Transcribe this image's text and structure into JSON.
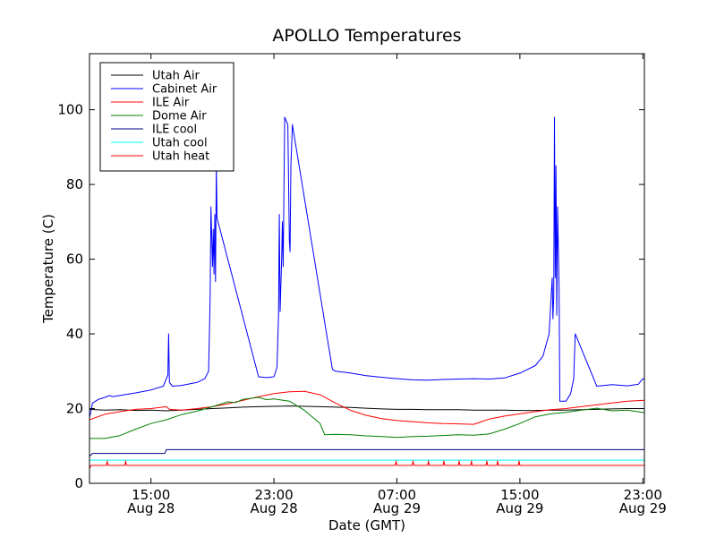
{
  "chart_data": {
    "type": "line",
    "title": "APOLLO Temperatures",
    "xlabel": "Date (GMT)",
    "ylabel": "Temperature (C)",
    "xlim": [
      11,
      47.1
    ],
    "ylim": [
      0,
      115
    ],
    "x_unit": "hours since Aug 28 00:00 GMT",
    "grid": false,
    "legend_position": "top-left",
    "x_ticks": [
      {
        "x": 15,
        "time": "15:00",
        "date": "Aug 28"
      },
      {
        "x": 23,
        "time": "23:00",
        "date": "Aug 28"
      },
      {
        "x": 31,
        "time": "07:00",
        "date": "Aug 29"
      },
      {
        "x": 39,
        "time": "15:00",
        "date": "Aug 29"
      },
      {
        "x": 47,
        "time": "23:00",
        "date": "Aug 29"
      }
    ],
    "y_ticks": [
      0,
      20,
      40,
      60,
      80,
      100
    ],
    "series": [
      {
        "name": "Utah Air",
        "color": "#000000",
        "points": [
          [
            11,
            19.8
          ],
          [
            12,
            19.6
          ],
          [
            13,
            19.7
          ],
          [
            14,
            19.5
          ],
          [
            15,
            19.6
          ],
          [
            16,
            19.4
          ],
          [
            17,
            19.6
          ],
          [
            18,
            19.8
          ],
          [
            19,
            20.0
          ],
          [
            20,
            20.2
          ],
          [
            21,
            20.4
          ],
          [
            22,
            20.5
          ],
          [
            23,
            20.6
          ],
          [
            24,
            20.7
          ],
          [
            25,
            20.6
          ],
          [
            26,
            20.5
          ],
          [
            27,
            20.4
          ],
          [
            28,
            20.3
          ],
          [
            29,
            20.1
          ],
          [
            30,
            19.9
          ],
          [
            31,
            19.8
          ],
          [
            32,
            19.8
          ],
          [
            33,
            19.7
          ],
          [
            34,
            19.7
          ],
          [
            35,
            19.7
          ],
          [
            36,
            19.6
          ],
          [
            37,
            19.6
          ],
          [
            38,
            19.6
          ],
          [
            39,
            19.5
          ],
          [
            40,
            19.5
          ],
          [
            41,
            19.6
          ],
          [
            42,
            19.6
          ],
          [
            43,
            19.7
          ],
          [
            44,
            19.8
          ],
          [
            45,
            19.9
          ],
          [
            46,
            20.0
          ],
          [
            47.1,
            20.0
          ]
        ]
      },
      {
        "name": "Cabinet Air",
        "color": "#0000ff",
        "points": [
          [
            11,
            17.5
          ],
          [
            11.2,
            21.5
          ],
          [
            11.6,
            22.5
          ],
          [
            12,
            23.0
          ],
          [
            12.3,
            23.5
          ],
          [
            12.5,
            23.2
          ],
          [
            13,
            23.5
          ],
          [
            14,
            24.2
          ],
          [
            15,
            25.0
          ],
          [
            15.8,
            26.0
          ],
          [
            16.1,
            29
          ],
          [
            16.15,
            40
          ],
          [
            16.2,
            27
          ],
          [
            16.4,
            26
          ],
          [
            17,
            26.2
          ],
          [
            18,
            27.0
          ],
          [
            18.5,
            28
          ],
          [
            18.75,
            30
          ],
          [
            18.85,
            50
          ],
          [
            18.9,
            74
          ],
          [
            19.0,
            58
          ],
          [
            19.05,
            68
          ],
          [
            19.1,
            56
          ],
          [
            19.15,
            72
          ],
          [
            19.2,
            54
          ],
          [
            19.25,
            85
          ],
          [
            19.3,
            71
          ],
          [
            22.0,
            28.5
          ],
          [
            22.5,
            28.3
          ],
          [
            23.0,
            28.5
          ],
          [
            23.2,
            31
          ],
          [
            23.3,
            45
          ],
          [
            23.35,
            72
          ],
          [
            23.4,
            46
          ],
          [
            23.5,
            60
          ],
          [
            23.55,
            70
          ],
          [
            23.6,
            58
          ],
          [
            23.7,
            98
          ],
          [
            23.8,
            97
          ],
          [
            23.9,
            96
          ],
          [
            24.0,
            65
          ],
          [
            24.05,
            62
          ],
          [
            24.1,
            85
          ],
          [
            24.2,
            96
          ],
          [
            26.8,
            30.5
          ],
          [
            27,
            30
          ],
          [
            28,
            29.5
          ],
          [
            29,
            28.8
          ],
          [
            30,
            28.4
          ],
          [
            31,
            28.0
          ],
          [
            32,
            27.7
          ],
          [
            33,
            27.6
          ],
          [
            34,
            27.8
          ],
          [
            35,
            27.9
          ],
          [
            36,
            28.0
          ],
          [
            37,
            27.9
          ],
          [
            38,
            28.2
          ],
          [
            39,
            29.5
          ],
          [
            40,
            31.5
          ],
          [
            40.5,
            34
          ],
          [
            40.9,
            40
          ],
          [
            41.1,
            55
          ],
          [
            41.15,
            44
          ],
          [
            41.2,
            50
          ],
          [
            41.25,
            98
          ],
          [
            41.3,
            55
          ],
          [
            41.35,
            85
          ],
          [
            41.4,
            45
          ],
          [
            41.45,
            74
          ],
          [
            41.55,
            52
          ],
          [
            41.6,
            22
          ],
          [
            42.0,
            22
          ],
          [
            42.3,
            24
          ],
          [
            42.5,
            28
          ],
          [
            42.6,
            40
          ],
          [
            44.0,
            26
          ],
          [
            45,
            26.4
          ],
          [
            46,
            26.1
          ],
          [
            46.7,
            26.5
          ],
          [
            47.0,
            28
          ],
          [
            47.1,
            27.8
          ]
        ]
      },
      {
        "name": "ILE Air",
        "color": "#ff0000",
        "points": [
          [
            11,
            17.0
          ],
          [
            12,
            18.5
          ],
          [
            13,
            19.2
          ],
          [
            14,
            19.8
          ],
          [
            15,
            20.0
          ],
          [
            16,
            20.5
          ],
          [
            16.2,
            19.8
          ],
          [
            17,
            19.6
          ],
          [
            18,
            20.0
          ],
          [
            19,
            20.5
          ],
          [
            20,
            21.3
          ],
          [
            21,
            22.2
          ],
          [
            22,
            23.2
          ],
          [
            23,
            24.0
          ],
          [
            24,
            24.5
          ],
          [
            25,
            24.6
          ],
          [
            26,
            23.7
          ],
          [
            27,
            21.5
          ],
          [
            28,
            19.5
          ],
          [
            29,
            18.2
          ],
          [
            30,
            17.3
          ],
          [
            31,
            16.8
          ],
          [
            32,
            16.5
          ],
          [
            33,
            16.2
          ],
          [
            34,
            16.0
          ],
          [
            35,
            15.9
          ],
          [
            36,
            15.8
          ],
          [
            36.5,
            16.5
          ],
          [
            37,
            17.2
          ],
          [
            38,
            18.0
          ],
          [
            39,
            18.6
          ],
          [
            40,
            19.2
          ],
          [
            41,
            19.7
          ],
          [
            42,
            20.0
          ],
          [
            43,
            20.5
          ],
          [
            44,
            21.0
          ],
          [
            45,
            21.5
          ],
          [
            46,
            22.0
          ],
          [
            47.1,
            22.2
          ]
        ]
      },
      {
        "name": "Dome Air",
        "color": "#008000",
        "points": [
          [
            11,
            12.0
          ],
          [
            12,
            12.0
          ],
          [
            13,
            12.8
          ],
          [
            14,
            14.5
          ],
          [
            15,
            16.0
          ],
          [
            16,
            17.0
          ],
          [
            17,
            18.4
          ],
          [
            18,
            19.3
          ],
          [
            19,
            20.5
          ],
          [
            20,
            21.8
          ],
          [
            20.5,
            21.6
          ],
          [
            21,
            22.5
          ],
          [
            22,
            23.0
          ],
          [
            22.5,
            22.4
          ],
          [
            23,
            22.6
          ],
          [
            24,
            22.0
          ],
          [
            25,
            19.5
          ],
          [
            26,
            16.0
          ],
          [
            26.3,
            13.0
          ],
          [
            27,
            13.1
          ],
          [
            28,
            13.0
          ],
          [
            29,
            12.7
          ],
          [
            30,
            12.5
          ],
          [
            31,
            12.3
          ],
          [
            32,
            12.5
          ],
          [
            33,
            12.6
          ],
          [
            34,
            12.8
          ],
          [
            35,
            13.0
          ],
          [
            36,
            12.9
          ],
          [
            37,
            13.2
          ],
          [
            38,
            14.5
          ],
          [
            39,
            16.0
          ],
          [
            40,
            17.8
          ],
          [
            41,
            18.6
          ],
          [
            42,
            19.0
          ],
          [
            43,
            19.6
          ],
          [
            44,
            20.1
          ],
          [
            45,
            19.4
          ],
          [
            46,
            19.6
          ],
          [
            47.1,
            18.9
          ]
        ]
      },
      {
        "name": "ILE cool",
        "color": "#000080",
        "points": [
          [
            11,
            7.2
          ],
          [
            11.2,
            8.0
          ],
          [
            15.9,
            8.0
          ],
          [
            16.0,
            9.0
          ],
          [
            47.1,
            9.0
          ]
        ]
      },
      {
        "name": "Utah cool",
        "color": "#00ffff",
        "points": [
          [
            11,
            6.2
          ],
          [
            47.1,
            6.2
          ]
        ]
      },
      {
        "name": "Utah heat",
        "color": "#ff0000",
        "points": [
          [
            11,
            4.0
          ],
          [
            11.1,
            4.8
          ],
          [
            12.1,
            4.8
          ],
          [
            12.15,
            6.0
          ],
          [
            12.2,
            4.8
          ],
          [
            13.3,
            4.8
          ],
          [
            13.35,
            6.0
          ],
          [
            13.4,
            4.8
          ],
          [
            30.9,
            4.8
          ],
          [
            30.95,
            6.0
          ],
          [
            31.0,
            4.8
          ],
          [
            32.0,
            4.8
          ],
          [
            32.05,
            6.0
          ],
          [
            32.1,
            4.8
          ],
          [
            33.0,
            4.8
          ],
          [
            33.05,
            6.0
          ],
          [
            33.1,
            4.8
          ],
          [
            34.0,
            4.8
          ],
          [
            34.05,
            6.0
          ],
          [
            34.1,
            4.8
          ],
          [
            35.0,
            4.8
          ],
          [
            35.05,
            6.0
          ],
          [
            35.1,
            4.8
          ],
          [
            35.8,
            4.8
          ],
          [
            35.85,
            6.0
          ],
          [
            35.9,
            4.8
          ],
          [
            36.8,
            4.8
          ],
          [
            36.85,
            6.0
          ],
          [
            36.9,
            4.8
          ],
          [
            37.5,
            4.8
          ],
          [
            37.55,
            6.0
          ],
          [
            37.6,
            4.8
          ],
          [
            38.9,
            4.8
          ],
          [
            38.95,
            6.0
          ],
          [
            39.0,
            4.8
          ],
          [
            47.1,
            4.8
          ]
        ]
      }
    ]
  }
}
